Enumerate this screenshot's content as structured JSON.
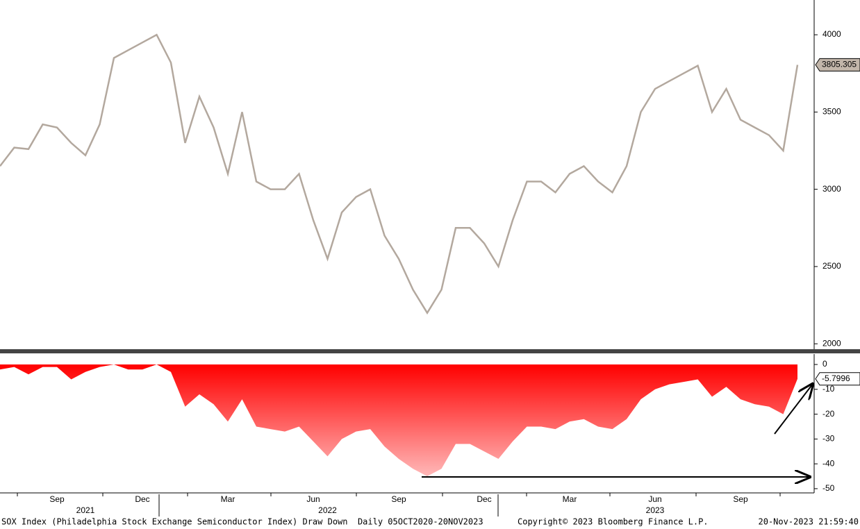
{
  "chart_data": [
    {
      "type": "line",
      "ylim": [
        1965,
        4225
      ],
      "yticks": [
        2000,
        2500,
        3000,
        3500,
        4000
      ],
      "series": [
        {
          "name": "SOX Index",
          "color": "#b3a89e",
          "values": [
            3150,
            3270,
            3260,
            3420,
            3400,
            3300,
            3220,
            3420,
            3850,
            3900,
            3950,
            4000,
            3820,
            3300,
            3600,
            3400,
            3100,
            3500,
            3050,
            3000,
            3000,
            3100,
            2800,
            2550,
            2850,
            2950,
            3000,
            2700,
            2550,
            2350,
            2200,
            2350,
            2750,
            2750,
            2650,
            2500,
            2800,
            3050,
            3050,
            2980,
            3100,
            3150,
            3050,
            2980,
            3150,
            3500,
            3650,
            3700,
            3750,
            3800,
            3500,
            3650,
            3450,
            3400,
            3350,
            3250,
            3805.305
          ],
          "label_color": "#c2b6aa"
        }
      ]
    },
    {
      "type": "area",
      "ylim": [
        -51.7,
        4.2
      ],
      "yticks": [
        0,
        -10,
        -20,
        -30,
        -40,
        -50
      ],
      "categories": [
        null,
        null,
        null,
        null,
        "Sep",
        null,
        null,
        null,
        null,
        null,
        "Dec",
        null,
        null,
        null,
        null,
        null,
        "Mar",
        null,
        null,
        null,
        null,
        null,
        "Jun",
        null,
        null,
        null,
        null,
        null,
        "Sep",
        null,
        null,
        null,
        null,
        null,
        "Dec",
        null,
        null,
        null,
        null,
        null,
        "Mar",
        null,
        null,
        null,
        null,
        null,
        "Jun",
        null,
        null,
        null,
        null,
        null,
        "Sep",
        null,
        null,
        null,
        null
      ],
      "year_categories": [
        null,
        null,
        null,
        null,
        null,
        null,
        "2021",
        null,
        null,
        null,
        null,
        null,
        null,
        null,
        null,
        null,
        null,
        null,
        null,
        null,
        null,
        null,
        null,
        "2022",
        null,
        null,
        null,
        null,
        null,
        null,
        null,
        null,
        null,
        null,
        null,
        null,
        null,
        null,
        null,
        null,
        null,
        null,
        null,
        null,
        null,
        null,
        "2023",
        null,
        null,
        null,
        null,
        null,
        null,
        null,
        null,
        null,
        null
      ],
      "series": [
        {
          "name": "Draw Down",
          "color": "#ff0000",
          "color_bottom": "#ffb8b8",
          "values": [
            -2,
            -1,
            -4,
            -1,
            -1,
            -6,
            -3,
            -1,
            0,
            -2,
            -2,
            0,
            -3,
            -17,
            -12,
            -16,
            -23,
            -14,
            -25,
            -26,
            -27,
            -25,
            -31,
            -37,
            -30,
            -27,
            -26,
            -33,
            -38,
            -42,
            -45,
            -42,
            -32,
            -32,
            -35,
            -38,
            -31,
            -25,
            -25,
            -26,
            -23,
            -22,
            -25,
            -26,
            -22,
            -14,
            -10,
            -8,
            -7,
            -6,
            -13,
            -9,
            -14,
            -16,
            -17,
            -20,
            -5.7996
          ]
        }
      ]
    }
  ],
  "footer": {
    "left": "SOX Index (Philadelphia Stock Exchange Semiconductor Index) Draw Down  Daily 05OCT2020-20NOV2023",
    "center": "Copyright© 2023 Bloomberg Finance L.P.",
    "right": "20-Nov-2023 21:59:40"
  }
}
